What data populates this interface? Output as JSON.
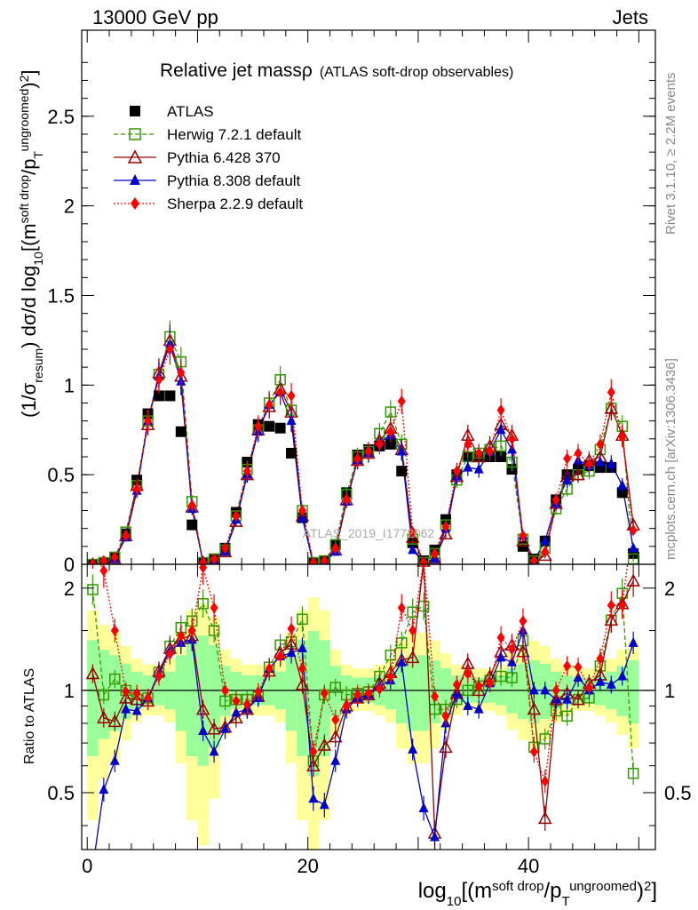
{
  "header": {
    "left": "13000 GeV pp",
    "right": "Jets"
  },
  "side_labels": {
    "top": "Rivet 3.1.10, ≥ 2.2M events",
    "bottom": "mcplots.cern.ch [arXiv:1306.3436]"
  },
  "watermark": "ATLAS_2019_I1772062",
  "title": {
    "main": "Relative jet massρ",
    "sub": "(ATLAS soft-drop observables)"
  },
  "ylabel": {
    "main": "(1/σresum) dσ/d log10[(m soft drop/pT ungroomed)2]",
    "ratio": "Ratio to ATLAS"
  },
  "xlabel": "log10[(m soft drop/pT ungroomed)2]",
  "chart_data": [
    {
      "type": "line",
      "panel": "main",
      "x": [
        0.5,
        1.5,
        2.5,
        3.5,
        4.5,
        5.5,
        6.5,
        7.5,
        8.5,
        9.5,
        10.5,
        11.5,
        12.5,
        13.5,
        14.5,
        15.5,
        16.5,
        17.5,
        18.5,
        19.5,
        20.5,
        21.5,
        22.5,
        23.5,
        24.5,
        25.5,
        26.5,
        27.5,
        28.5,
        29.5,
        30.5,
        31.5,
        32.5,
        33.5,
        34.5,
        35.5,
        36.5,
        37.5,
        38.5,
        39.5,
        40.5,
        41.5,
        42.5,
        43.5,
        44.5,
        45.5,
        46.5,
        47.5,
        48.5,
        49.5
      ],
      "xlim": [
        -0.5,
        51.5
      ],
      "ylim": [
        0,
        2.98
      ],
      "yticks": [
        0,
        0.5,
        1,
        1.5,
        2,
        2.5
      ],
      "xticks": [
        0,
        20,
        40
      ],
      "series": [
        {
          "name": "ATLAS",
          "color": "#000000",
          "marker": "square",
          "values": [
            0.0,
            0.01,
            0.04,
            0.17,
            0.47,
            0.84,
            0.94,
            0.94,
            0.74,
            0.22,
            0.01,
            0.03,
            0.09,
            0.29,
            0.57,
            0.78,
            0.77,
            0.76,
            0.62,
            0.26,
            0.01,
            0.02,
            0.11,
            0.4,
            0.61,
            0.64,
            0.66,
            0.67,
            0.52,
            0.12,
            0.02,
            0.08,
            0.25,
            0.5,
            0.6,
            0.6,
            0.6,
            0.6,
            0.53,
            0.1,
            0.03,
            0.13,
            0.36,
            0.5,
            0.53,
            0.55,
            0.54,
            0.54,
            0.4,
            0.06
          ]
        },
        {
          "name": "Herwig 7.2.1 default",
          "color": "#339900",
          "marker": "open-square",
          "dash": "5,3",
          "values": [
            0.0,
            0.01,
            0.04,
            0.18,
            0.44,
            0.8,
            1.06,
            1.27,
            1.13,
            0.35,
            0.01,
            0.03,
            0.08,
            0.27,
            0.53,
            0.75,
            0.9,
            1.03,
            0.86,
            0.3,
            0.01,
            0.02,
            0.11,
            0.39,
            0.6,
            0.63,
            0.73,
            0.85,
            0.67,
            0.14,
            0.01,
            0.06,
            0.22,
            0.47,
            0.6,
            0.62,
            0.64,
            0.66,
            0.57,
            0.14,
            0.02,
            0.09,
            0.31,
            0.42,
            0.5,
            0.52,
            0.64,
            0.87,
            0.77,
            0.03
          ]
        },
        {
          "name": "Pythia 6.428 370",
          "color": "#990000",
          "marker": "open-triangle",
          "values": [
            0.0,
            0.01,
            0.03,
            0.16,
            0.44,
            0.78,
            1.07,
            1.25,
            1.05,
            0.32,
            0.01,
            0.02,
            0.07,
            0.24,
            0.5,
            0.75,
            0.88,
            0.98,
            0.85,
            0.27,
            0.0,
            0.01,
            0.08,
            0.36,
            0.58,
            0.62,
            0.69,
            0.76,
            0.64,
            0.15,
            0.01,
            0.03,
            0.17,
            0.49,
            0.72,
            0.6,
            0.66,
            0.78,
            0.72,
            0.13,
            0.01,
            0.05,
            0.34,
            0.49,
            0.5,
            0.58,
            0.6,
            0.87,
            0.72,
            0.22
          ]
        },
        {
          "name": "Pythia 8.308 default",
          "color": "#0000cc",
          "marker": "triangle",
          "values": [
            0.0,
            0.01,
            0.03,
            0.15,
            0.41,
            0.8,
            1.05,
            1.23,
            1.02,
            0.31,
            0.01,
            0.02,
            0.07,
            0.25,
            0.5,
            0.74,
            0.89,
            0.96,
            0.8,
            0.26,
            0.0,
            0.01,
            0.07,
            0.35,
            0.58,
            0.62,
            0.68,
            0.72,
            0.63,
            0.08,
            0.01,
            0.03,
            0.2,
            0.49,
            0.54,
            0.53,
            0.63,
            0.75,
            0.64,
            0.16,
            0.02,
            0.13,
            0.34,
            0.47,
            0.58,
            0.55,
            0.57,
            0.56,
            0.44,
            0.09
          ]
        },
        {
          "name": "Sherpa 2.2.9 default",
          "color": "#ff0000",
          "marker": "diamond",
          "dash": "2,2",
          "values": [
            0.0,
            0.02,
            0.04,
            0.16,
            0.42,
            0.8,
            1.03,
            1.2,
            1.07,
            0.33,
            0.01,
            0.03,
            0.09,
            0.27,
            0.52,
            0.77,
            0.89,
            0.96,
            0.94,
            0.3,
            0.01,
            0.02,
            0.09,
            0.36,
            0.59,
            0.63,
            0.67,
            0.74,
            0.91,
            0.18,
            0.01,
            0.06,
            0.21,
            0.52,
            0.67,
            0.62,
            0.63,
            0.86,
            0.7,
            0.16,
            0.02,
            0.07,
            0.36,
            0.59,
            0.62,
            0.56,
            0.67,
            0.96,
            0.71,
            0.19
          ]
        }
      ]
    },
    {
      "type": "line",
      "panel": "ratio",
      "x": [
        0.5,
        1.5,
        2.5,
        3.5,
        4.5,
        5.5,
        6.5,
        7.5,
        8.5,
        9.5,
        10.5,
        11.5,
        12.5,
        13.5,
        14.5,
        15.5,
        16.5,
        17.5,
        18.5,
        19.5,
        20.5,
        21.5,
        22.5,
        23.5,
        24.5,
        25.5,
        26.5,
        27.5,
        28.5,
        29.5,
        30.5,
        31.5,
        32.5,
        33.5,
        34.5,
        35.5,
        36.5,
        37.5,
        38.5,
        39.5,
        40.5,
        41.5,
        42.5,
        43.5,
        44.5,
        45.5,
        46.5,
        47.5,
        48.5,
        49.5
      ],
      "ylim": [
        0.34,
        2.35
      ],
      "yscale": "log",
      "yticks": [
        0.5,
        1,
        2
      ],
      "reference_line": 1,
      "series": [
        {
          "name": "Herwig 7.2.1 default",
          "values": [
            1.98,
            0.97,
            1.08,
            1.0,
            0.94,
            0.95,
            1.13,
            1.35,
            1.53,
            1.6,
            1.8,
            1.5,
            0.93,
            0.94,
            0.94,
            0.96,
            1.17,
            1.36,
            1.39,
            1.62,
            0.62,
            0.97,
            1.02,
            0.97,
            0.98,
            0.99,
            1.1,
            1.27,
            1.38,
            1.7,
            1.77,
            0.88,
            0.88,
            0.94,
            1.0,
            1.03,
            1.07,
            1.1,
            1.09,
            1.4,
            0.68,
            0.72,
            0.87,
            0.84,
            0.94,
            0.95,
            1.18,
            1.61,
            1.93,
            0.57
          ]
        },
        {
          "name": "Pythia 6.428 370",
          "values": [
            1.12,
            0.83,
            0.81,
            0.95,
            0.94,
            0.93,
            1.14,
            1.33,
            1.42,
            1.45,
            0.88,
            0.77,
            0.78,
            0.83,
            0.88,
            0.96,
            1.14,
            1.29,
            1.37,
            1.04,
            0.6,
            0.69,
            0.73,
            0.9,
            0.95,
            0.97,
            1.05,
            1.13,
            1.23,
            1.25,
            2.4,
            0.38,
            0.68,
            0.98,
            1.2,
            1.0,
            1.1,
            1.3,
            1.36,
            1.3,
            0.88,
            0.42,
            0.94,
            0.98,
            0.94,
            1.05,
            1.11,
            1.61,
            1.8,
            2.1
          ]
        },
        {
          "name": "Pythia 8.308 default",
          "values": [
            0.3,
            0.51,
            0.62,
            0.88,
            0.87,
            0.95,
            1.12,
            1.31,
            1.38,
            1.41,
            0.76,
            0.66,
            0.77,
            0.86,
            0.88,
            0.95,
            1.16,
            1.26,
            1.29,
            1.33,
            0.48,
            0.46,
            0.62,
            0.88,
            0.95,
            0.97,
            1.03,
            1.07,
            1.21,
            0.67,
            0.45,
            0.37,
            0.8,
            0.98,
            0.9,
            0.88,
            1.05,
            1.25,
            1.21,
            1.5,
            1.0,
            1.0,
            0.94,
            0.94,
            1.09,
            1.0,
            1.06,
            1.04,
            1.1,
            1.38
          ]
        },
        {
          "name": "Sherpa 2.2.9 default",
          "values": [
            2.6,
            2.25,
            1.5,
            0.99,
            0.98,
            0.95,
            1.1,
            1.28,
            1.45,
            1.5,
            2.3,
            1.75,
            1.0,
            0.93,
            0.91,
            0.99,
            1.16,
            1.26,
            1.52,
            1.16,
            0.66,
            0.98,
            0.82,
            0.9,
            0.97,
            0.98,
            1.01,
            1.1,
            1.75,
            1.5,
            2.4,
            0.96,
            0.84,
            1.04,
            1.12,
            1.03,
            1.05,
            1.43,
            1.32,
            1.6,
            0.66,
            0.54,
            1.0,
            1.18,
            1.17,
            1.02,
            1.24,
            1.78,
            1.78,
            3.2
          ]
        }
      ]
    }
  ]
}
